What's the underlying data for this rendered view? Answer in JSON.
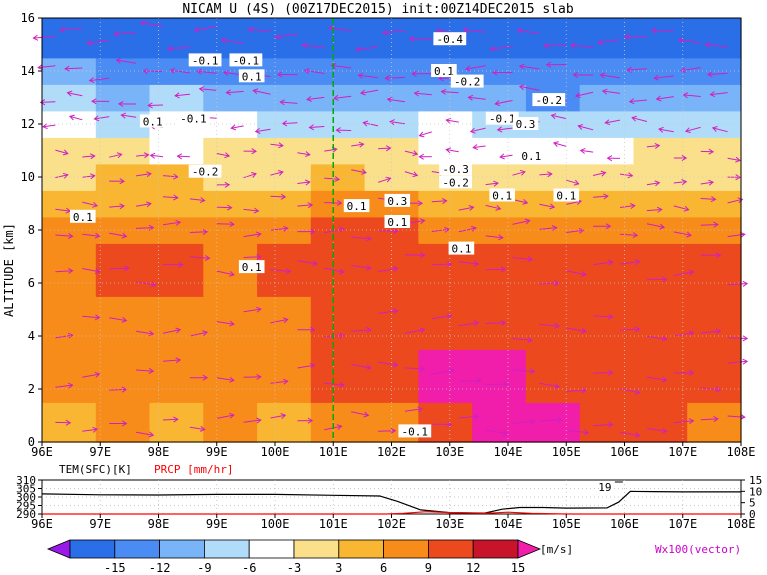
{
  "chart_data": [
    {
      "type": "heatmap",
      "title": "NICAM U (4S) (00Z17DEC2015) init:00Z14DEC2015 slab",
      "ylabel": "ALTITUDE [km]",
      "x_ticks": [
        "96E",
        "97E",
        "98E",
        "99E",
        "100E",
        "101E",
        "102E",
        "103E",
        "104E",
        "105E",
        "106E",
        "107E",
        "108E"
      ],
      "y_ticks": [
        "0",
        "2",
        "4",
        "6",
        "8",
        "10",
        "12",
        "14",
        "16"
      ],
      "xlim": [
        96,
        108
      ],
      "ylim": [
        0,
        16
      ],
      "grid": true,
      "vertical_marker_lon": 101,
      "vertical_marker_color": "#00aa00",
      "layers": [
        {
          "z_top": 1.5,
          "u_by_lon": [
            6,
            9,
            6,
            9,
            6,
            9,
            9,
            12,
            15,
            15,
            12,
            12,
            9
          ]
        },
        {
          "z_top": 3.5,
          "u_by_lon": [
            9,
            9,
            9,
            9,
            9,
            12,
            12,
            15,
            15,
            12,
            12,
            12,
            12
          ]
        },
        {
          "z_top": 5.5,
          "u_by_lon": [
            9,
            9,
            9,
            9,
            9,
            12,
            12,
            12,
            12,
            12,
            12,
            12,
            12
          ]
        },
        {
          "z_top": 7.5,
          "u_by_lon": [
            9,
            12,
            12,
            9,
            12,
            12,
            12,
            12,
            12,
            12,
            12,
            12,
            12
          ]
        },
        {
          "z_top": 8.5,
          "u_by_lon": [
            9,
            9,
            9,
            9,
            9,
            12,
            12,
            9,
            9,
            9,
            9,
            9,
            9
          ]
        },
        {
          "z_top": 9.5,
          "u_by_lon": [
            6,
            6,
            6,
            6,
            6,
            9,
            9,
            6,
            6,
            6,
            6,
            6,
            6
          ]
        },
        {
          "z_top": 10.5,
          "u_by_lon": [
            3,
            6,
            6,
            3,
            3,
            6,
            3,
            3,
            3,
            3,
            3,
            3,
            3
          ]
        },
        {
          "z_top": 11.5,
          "u_by_lon": [
            3,
            3,
            -3,
            3,
            3,
            3,
            3,
            -3,
            -3,
            -3,
            -3,
            3,
            3
          ]
        },
        {
          "z_top": 12.5,
          "u_by_lon": [
            -3,
            -6,
            -3,
            -3,
            -6,
            -6,
            -6,
            -3,
            -6,
            -6,
            -6,
            -6,
            -6
          ]
        },
        {
          "z_top": 13.5,
          "u_by_lon": [
            -6,
            -9,
            -6,
            -9,
            -9,
            -9,
            -9,
            -9,
            -9,
            -12,
            -9,
            -9,
            -9
          ]
        },
        {
          "z_top": 14.5,
          "u_by_lon": [
            -9,
            -12,
            -12,
            -12,
            -12,
            -12,
            -12,
            -12,
            -12,
            -12,
            -12,
            -12,
            -12
          ]
        },
        {
          "z_top": 16,
          "u_by_lon": [
            -15,
            -15,
            -15,
            -15,
            -15,
            -15,
            -15,
            -15,
            -15,
            -15,
            -15,
            -15,
            -15
          ]
        }
      ],
      "contour_labels": [
        {
          "text": "-0.4",
          "lon": 103.0,
          "z": 15.2
        },
        {
          "text": "-0.1",
          "lon": 98.8,
          "z": 14.4
        },
        {
          "text": "-0.1",
          "lon": 99.5,
          "z": 14.4
        },
        {
          "text": "0.1",
          "lon": 99.6,
          "z": 13.8
        },
        {
          "text": "0.1",
          "lon": 102.9,
          "z": 14.0
        },
        {
          "text": "-0.2",
          "lon": 103.3,
          "z": 13.6
        },
        {
          "text": "-0.2",
          "lon": 104.7,
          "z": 12.9
        },
        {
          "text": "0.1",
          "lon": 97.9,
          "z": 12.1
        },
        {
          "text": "-0.1",
          "lon": 98.6,
          "z": 12.2
        },
        {
          "text": "-0.1",
          "lon": 103.9,
          "z": 12.2
        },
        {
          "text": "0.3",
          "lon": 104.3,
          "z": 12.0
        },
        {
          "text": "0.1",
          "lon": 104.4,
          "z": 10.8
        },
        {
          "text": "-0.2",
          "lon": 98.8,
          "z": 10.2
        },
        {
          "text": "-0.3",
          "lon": 103.1,
          "z": 10.3
        },
        {
          "text": "-0.2",
          "lon": 103.1,
          "z": 9.8
        },
        {
          "text": "0.1",
          "lon": 103.9,
          "z": 9.3
        },
        {
          "text": "0.1",
          "lon": 105.0,
          "z": 9.3
        },
        {
          "text": "0.3",
          "lon": 102.1,
          "z": 9.1
        },
        {
          "text": "0.1",
          "lon": 101.4,
          "z": 8.9
        },
        {
          "text": "0.1",
          "lon": 102.1,
          "z": 8.3
        },
        {
          "text": "0.1",
          "lon": 96.7,
          "z": 8.5
        },
        {
          "text": "0.1",
          "lon": 103.2,
          "z": 7.3
        },
        {
          "text": "0.1",
          "lon": 99.6,
          "z": 6.6
        },
        {
          "text": "-0.1",
          "lon": 102.4,
          "z": 0.4
        }
      ]
    },
    {
      "type": "line",
      "left_label": "TEM(SFC)[K]",
      "right_label": "PRCP [mm/hr]",
      "left_ticks": [
        "310",
        "305",
        "300",
        "295",
        "290"
      ],
      "right_ticks": [
        "15",
        "10",
        "5",
        "0"
      ],
      "x_ticks": [
        "96E",
        "97E",
        "98E",
        "99E",
        "100E",
        "101E",
        "102E",
        "103E",
        "104E",
        "105E",
        "106E",
        "107E",
        "108E"
      ],
      "xlim": [
        96,
        108
      ],
      "left_ylim": [
        290,
        310
      ],
      "right_ylim": [
        0,
        15
      ],
      "series": [
        {
          "color": "#000000",
          "x": [
            96,
            97,
            98,
            99,
            100,
            101,
            101.8,
            102.1,
            102.5,
            103.0,
            103.6,
            103.9,
            104.2,
            104.6,
            105.0,
            105.7,
            105.9,
            106.1,
            106.5,
            107,
            108
          ],
          "y": [
            301.8,
            301.3,
            301.2,
            301.5,
            301.5,
            301.0,
            300.6,
            297.5,
            292.4,
            290.8,
            290.5,
            292.8,
            293.8,
            293.8,
            293.5,
            293.6,
            297.0,
            303.3,
            303.2,
            303.0,
            303.0
          ]
        },
        {
          "color": "#ff0000",
          "x": [
            96,
            101,
            101.9,
            102.2,
            102.6,
            103.0,
            103.6,
            104.0,
            104.4,
            105,
            108
          ],
          "y": [
            0,
            0,
            0,
            0.3,
            1.0,
            0.6,
            0.3,
            0.8,
            0.3,
            0,
            0
          ]
        }
      ],
      "annotations": [
        {
          "text": "19",
          "lon": 105.8
        }
      ]
    }
  ],
  "colorbar": {
    "ticks": [
      "-15",
      "-12",
      "-9",
      "-6",
      "-3",
      "3",
      "6",
      "9",
      "12",
      "15"
    ],
    "unit": "[m/s]",
    "vector_label": "Wx100(vector)",
    "colors": [
      "#9a18e8",
      "#2a6ee8",
      "#4a8cf4",
      "#7ab4f8",
      "#b0dcfa",
      "#ffffff",
      "#fae08a",
      "#f8b632",
      "#f88c1a",
      "#ec4a1e",
      "#c8142a",
      "#f01eaa"
    ]
  }
}
